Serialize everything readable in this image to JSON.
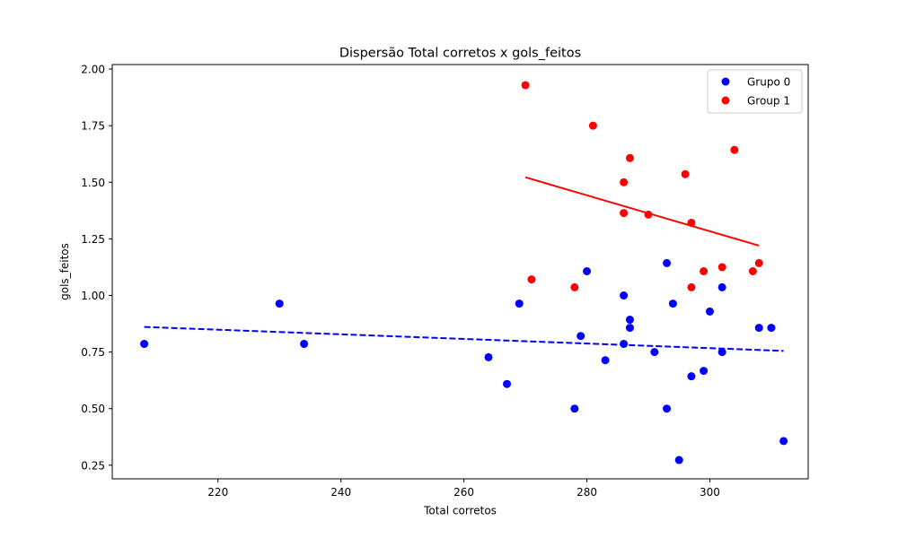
{
  "chart_data": {
    "type": "scatter",
    "title": "Dispersão Total corretos x gols_feitos",
    "xlabel": "Total corretos",
    "ylabel": "gols_feitos",
    "xlim": [
      202.8,
      316.0
    ],
    "ylim": [
      0.19,
      2.02
    ],
    "x_ticks": [
      220,
      240,
      260,
      280,
      300
    ],
    "y_ticks": [
      0.25,
      0.5,
      0.75,
      1.0,
      1.25,
      1.5,
      1.75,
      2.0
    ],
    "x_tick_labels": [
      "220",
      "240",
      "260",
      "280",
      "300"
    ],
    "y_tick_labels": [
      "0.25",
      "0.50",
      "0.75",
      "1.00",
      "1.25",
      "1.50",
      "1.75",
      "2.00"
    ],
    "grid": false,
    "legend_position": "top-right",
    "series": [
      {
        "name": "Grupo 0",
        "color": "#0000ff",
        "points": [
          [
            208,
            0.786
          ],
          [
            230,
            0.964
          ],
          [
            234,
            0.786
          ],
          [
            264,
            0.727
          ],
          [
            267,
            0.609
          ],
          [
            269,
            0.964
          ],
          [
            278,
            0.5
          ],
          [
            279,
            0.821
          ],
          [
            280,
            1.107
          ],
          [
            283,
            0.714
          ],
          [
            286,
            1.0
          ],
          [
            286,
            0.786
          ],
          [
            287,
            0.893
          ],
          [
            287,
            0.857
          ],
          [
            291,
            0.75
          ],
          [
            293,
            1.143
          ],
          [
            293,
            0.5
          ],
          [
            294,
            0.964
          ],
          [
            295,
            0.273
          ],
          [
            297,
            0.643
          ],
          [
            299,
            0.667
          ],
          [
            300,
            0.929
          ],
          [
            302,
            1.036
          ],
          [
            302,
            0.75
          ],
          [
            308,
            0.857
          ],
          [
            310,
            0.857
          ],
          [
            312,
            0.357
          ]
        ],
        "trend": {
          "x": [
            208,
            312
          ],
          "y": [
            0.861,
            0.755
          ],
          "style": "dashed"
        }
      },
      {
        "name": "Group 1",
        "color": "#ff0000",
        "points": [
          [
            270,
            1.929
          ],
          [
            271,
            1.071
          ],
          [
            278,
            1.036
          ],
          [
            281,
            1.75
          ],
          [
            286,
            1.5
          ],
          [
            286,
            1.364
          ],
          [
            287,
            1.607
          ],
          [
            290,
            1.357
          ],
          [
            296,
            1.536
          ],
          [
            297,
            1.321
          ],
          [
            297,
            1.036
          ],
          [
            299,
            1.107
          ],
          [
            302,
            1.125
          ],
          [
            304,
            1.643
          ],
          [
            307,
            1.107
          ],
          [
            308,
            1.143
          ]
        ],
        "trend": {
          "x": [
            270,
            308
          ],
          "y": [
            1.522,
            1.22
          ],
          "style": "solid"
        }
      }
    ]
  }
}
